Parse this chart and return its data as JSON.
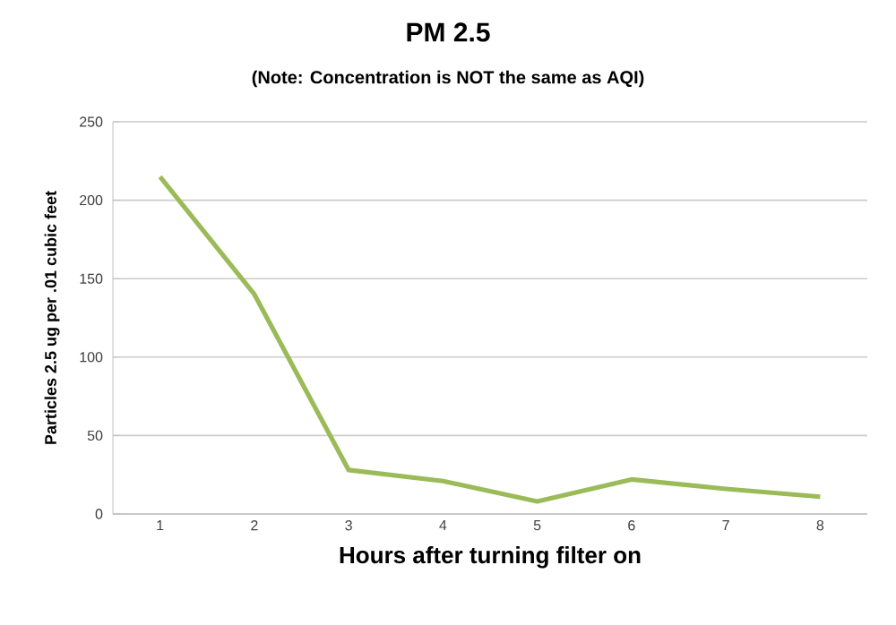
{
  "chart_data": {
    "type": "line",
    "title": "PM 2.5",
    "subtitle": "(Note: Concentration is NOT the same as AQI)",
    "xlabel": "Hours after turning filter on",
    "ylabel": "Particles 2.5 ug per .01 cubic feet",
    "categories": [
      "1",
      "2",
      "3",
      "4",
      "5",
      "6",
      "7",
      "8"
    ],
    "series": [
      {
        "color": "#9bbb59",
        "values": [
          215,
          140,
          28,
          21,
          8,
          22,
          16,
          11
        ]
      }
    ],
    "ylim": [
      0,
      250
    ],
    "yticks": [
      0,
      50,
      100,
      150,
      200,
      250
    ],
    "grid": "y",
    "marker": "none",
    "line_style": "solid"
  }
}
